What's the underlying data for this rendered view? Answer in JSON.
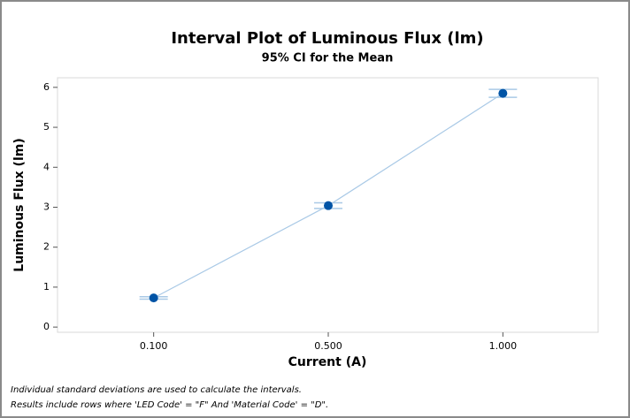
{
  "chart_data": {
    "type": "interval",
    "title": "Interval Plot of Luminous Flux (lm)",
    "subtitle": "95% CI for the Mean",
    "x_label": "Current (A)",
    "y_label": "Luminous Flux (lm)",
    "categories": [
      "0.100",
      "0.500",
      "1.000"
    ],
    "values": [
      0.73,
      3.04,
      5.85
    ],
    "errors": [
      0.03,
      0.07,
      0.1
    ],
    "color": "#0054a6",
    "line_color": "#a9c9e6",
    "ylim": [
      -0.13,
      6.24
    ],
    "yticks": [
      0,
      1,
      2,
      3,
      4,
      5,
      6
    ],
    "grid": false,
    "notes": [
      "Individual standard deviations are used to calculate the intervals.",
      "Results include rows where 'LED Code' = \"F\" And  'Material Code' = \"D\"."
    ]
  }
}
